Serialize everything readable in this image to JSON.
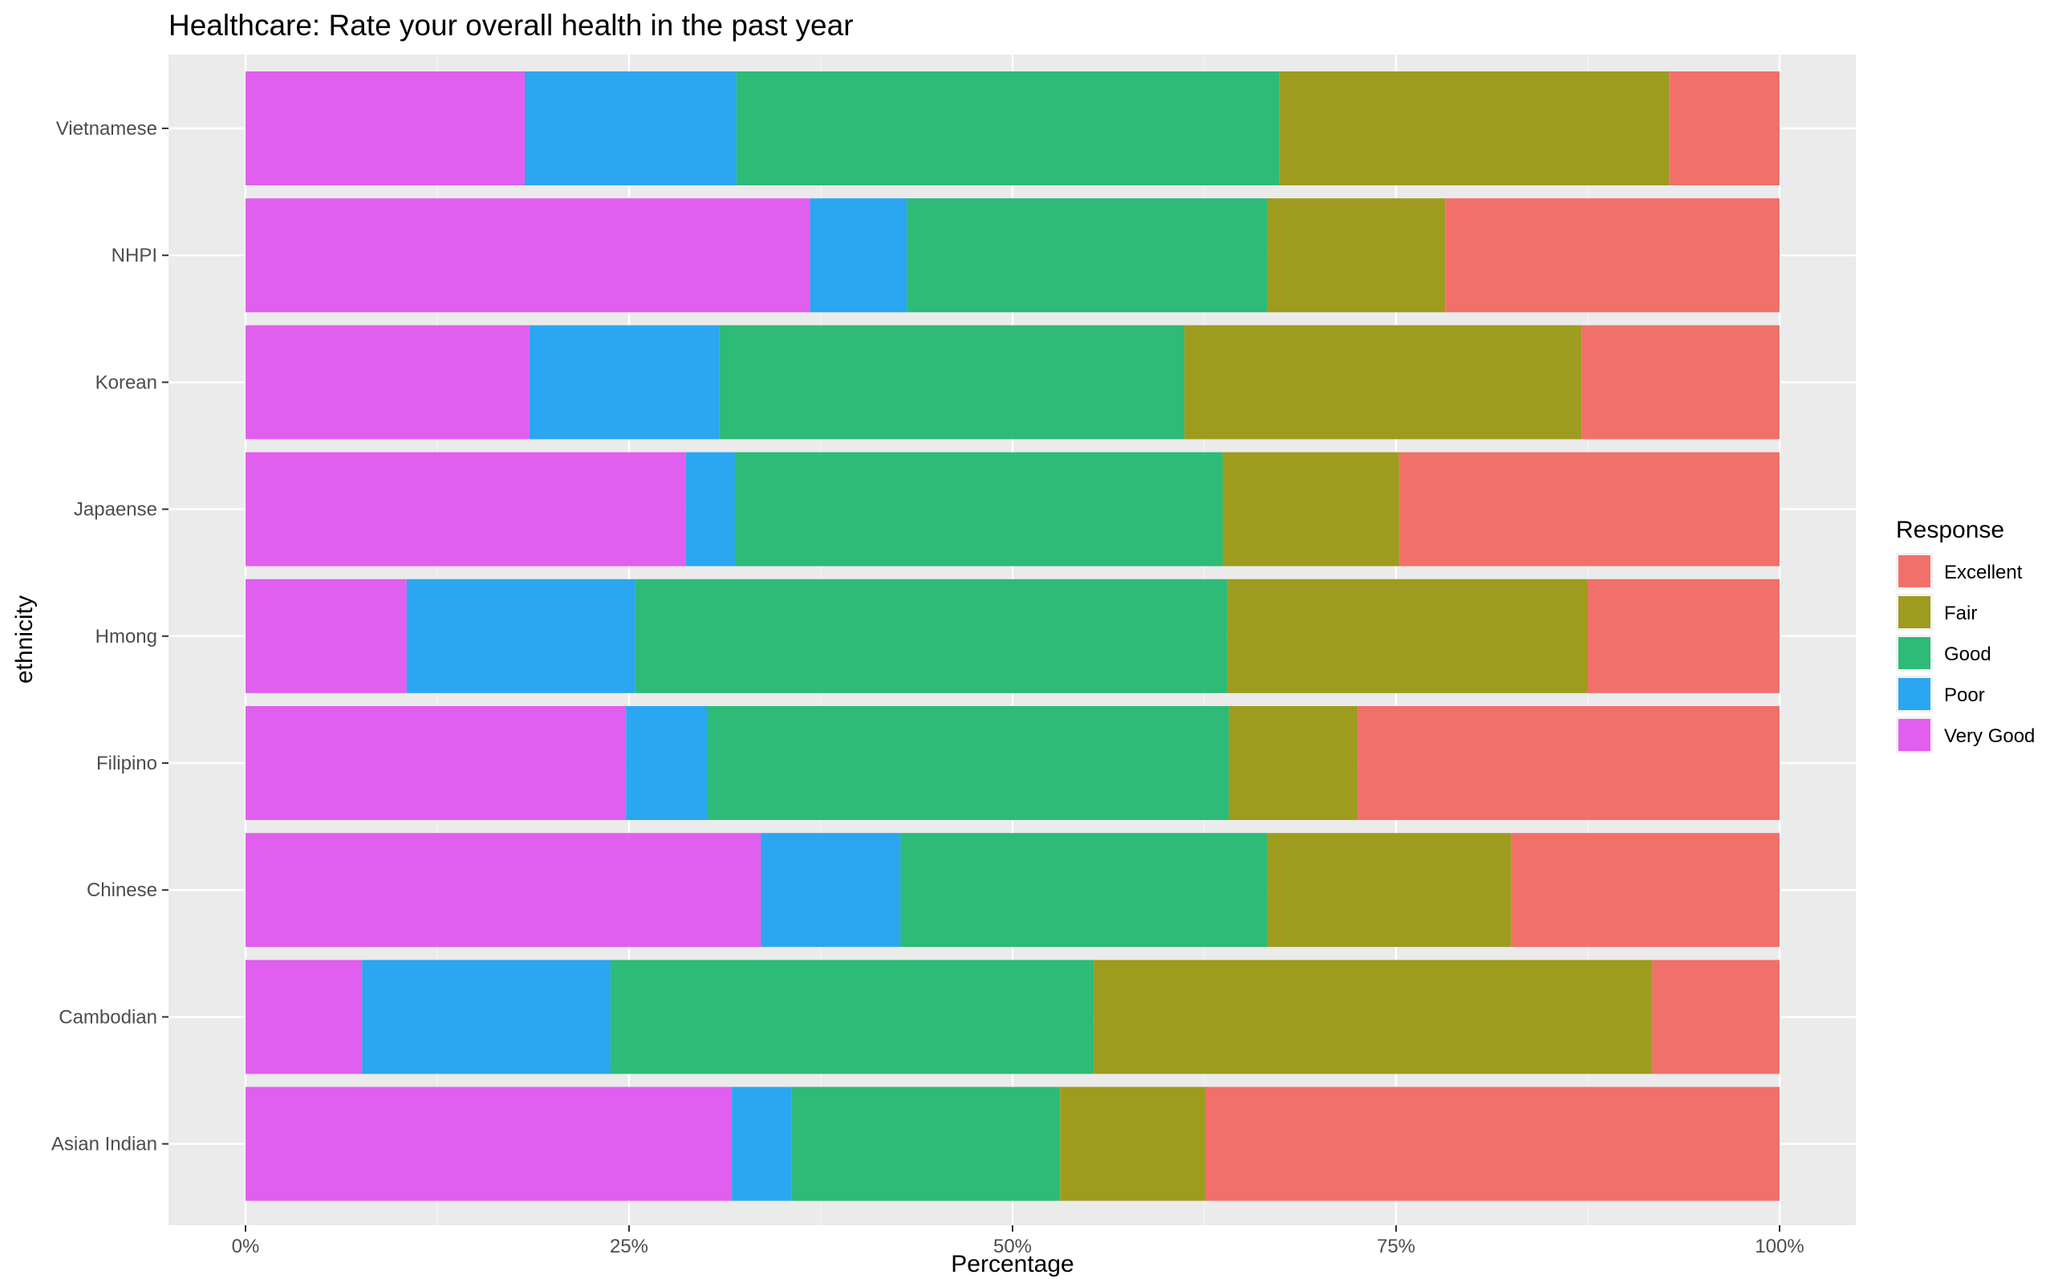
{
  "chart_data": {
    "type": "bar",
    "orientation": "horizontal",
    "stacked": "percent",
    "title": "Healthcare: Rate your overall health in the past year",
    "xlabel": "Percentage",
    "ylabel": "ethnicity",
    "xlim": [
      0,
      100
    ],
    "x_ticks": [
      "0%",
      "25%",
      "50%",
      "75%",
      "100%"
    ],
    "x_tick_values": [
      0,
      25,
      50,
      75,
      100
    ],
    "categories": [
      "Asian Indian",
      "Cambodian",
      "Chinese",
      "Filipino",
      "Hmong",
      "Japaense",
      "Korean",
      "NHPI",
      "Vietnamese"
    ],
    "legend": {
      "title": "Response",
      "placement": "right"
    },
    "grid": true,
    "series": [
      {
        "name": "Very Good",
        "color": "#E15FEE",
        "values": [
          31.7,
          7.6,
          33.6,
          24.8,
          10.5,
          28.7,
          18.5,
          36.8,
          18.2
        ]
      },
      {
        "name": "Poor",
        "color": "#2BA6F0",
        "values": [
          3.9,
          16.2,
          9.1,
          5.3,
          14.9,
          3.2,
          12.4,
          6.3,
          13.8
        ]
      },
      {
        "name": "Good",
        "color": "#2DBB77",
        "values": [
          17.5,
          31.5,
          23.9,
          34.0,
          38.6,
          31.8,
          30.3,
          23.5,
          35.4
        ]
      },
      {
        "name": "Fair",
        "color": "#9D9C1E",
        "values": [
          9.5,
          36.4,
          15.9,
          8.4,
          23.5,
          11.5,
          25.9,
          11.6,
          25.4
        ]
      },
      {
        "name": "Excellent",
        "color": "#F2706A",
        "values": [
          37.4,
          8.3,
          17.5,
          27.5,
          12.5,
          24.8,
          12.9,
          21.8,
          7.2
        ]
      }
    ],
    "legend_order": [
      "Excellent",
      "Fair",
      "Good",
      "Poor",
      "Very Good"
    ]
  }
}
